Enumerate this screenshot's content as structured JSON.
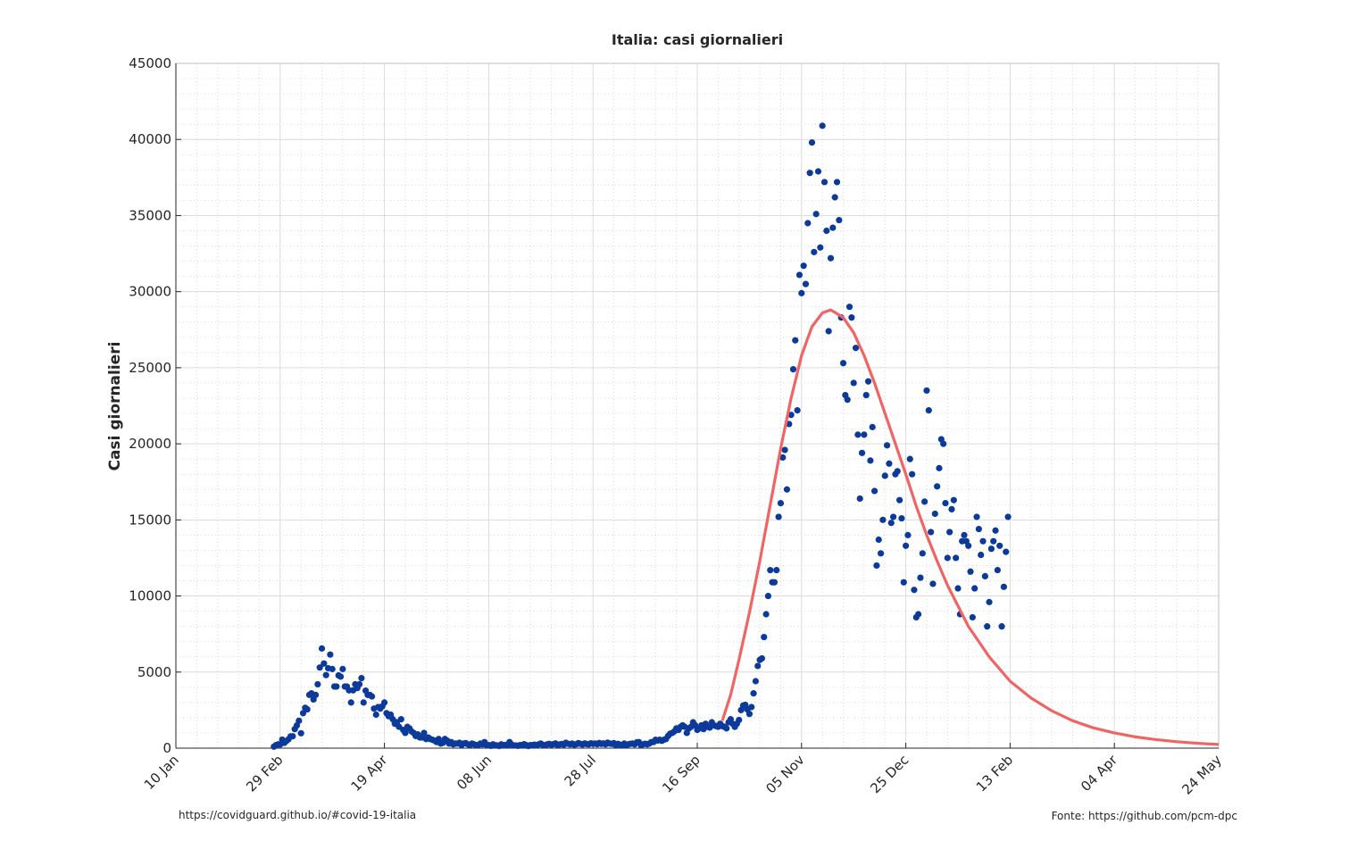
{
  "chart_data": {
    "type": "scatter",
    "title": "Italia: casi giornalieri",
    "ylabel": "Casi giornalieri",
    "footnote_left": "https://covidguard.github.io/#covid-19-italia",
    "footnote_right": "Fonte: https://github.com/pcm-dpc",
    "xlim": [
      0,
      500
    ],
    "xticks": [
      {
        "value": 0,
        "label": "10 Jan"
      },
      {
        "value": 50,
        "label": "29 Feb"
      },
      {
        "value": 100,
        "label": "19 Apr"
      },
      {
        "value": 150,
        "label": "08 Jun"
      },
      {
        "value": 200,
        "label": "28 Jul"
      },
      {
        "value": 250,
        "label": "16 Sep"
      },
      {
        "value": 300,
        "label": "05 Nov"
      },
      {
        "value": 350,
        "label": "25 Dec"
      },
      {
        "value": 400,
        "label": "13 Feb"
      },
      {
        "value": 450,
        "label": "04 Apr"
      },
      {
        "value": 500,
        "label": "24 May"
      }
    ],
    "ylim": [
      0,
      45000
    ],
    "yticks": [
      0,
      5000,
      10000,
      15000,
      20000,
      25000,
      30000,
      35000,
      40000,
      45000
    ],
    "grid": true,
    "minor_grid": true,
    "series": [
      {
        "type": "scatter",
        "color": "#0b3a9a",
        "x": [
          47,
          48,
          49,
          50,
          51,
          52,
          53,
          54,
          55,
          56,
          57,
          58,
          59,
          60,
          61,
          62,
          63,
          64,
          65,
          66,
          67,
          68,
          69,
          70,
          71,
          72,
          73,
          74,
          75,
          76,
          77,
          78,
          79,
          80,
          81,
          82,
          83,
          84,
          85,
          86,
          87,
          88,
          89,
          90,
          91,
          92,
          93,
          94,
          95,
          96,
          97,
          98,
          99,
          100,
          101,
          102,
          103,
          104,
          105,
          106,
          107,
          108,
          109,
          110,
          111,
          112,
          113,
          114,
          115,
          116,
          117,
          118,
          119,
          120,
          121,
          122,
          123,
          124,
          125,
          126,
          127,
          128,
          129,
          130,
          131,
          132,
          133,
          134,
          135,
          136,
          137,
          138,
          139,
          140,
          141,
          142,
          143,
          144,
          145,
          146,
          147,
          148,
          149,
          150,
          151,
          152,
          153,
          154,
          155,
          156,
          157,
          158,
          159,
          160,
          161,
          162,
          163,
          164,
          165,
          166,
          167,
          168,
          169,
          170,
          171,
          172,
          173,
          174,
          175,
          176,
          177,
          178,
          179,
          180,
          181,
          182,
          183,
          184,
          185,
          186,
          187,
          188,
          189,
          190,
          191,
          192,
          193,
          194,
          195,
          196,
          197,
          198,
          199,
          200,
          201,
          202,
          203,
          204,
          205,
          206,
          207,
          208,
          209,
          210,
          211,
          212,
          213,
          214,
          215,
          216,
          217,
          218,
          219,
          220,
          221,
          222,
          223,
          224,
          225,
          226,
          227,
          228,
          229,
          230,
          231,
          232,
          233,
          234,
          235,
          236,
          237,
          238,
          239,
          240,
          241,
          242,
          243,
          244,
          245,
          246,
          247,
          248,
          249,
          250,
          251,
          252,
          253,
          254,
          255,
          256,
          257,
          258,
          259,
          260,
          261,
          262,
          263,
          264,
          265,
          266,
          267,
          268,
          269,
          270,
          271,
          272,
          273,
          274,
          275,
          276,
          277,
          278,
          279,
          280,
          281,
          282,
          283,
          284,
          285,
          286,
          287,
          288,
          289,
          290,
          291,
          292,
          293,
          294,
          295,
          296,
          297,
          298,
          299,
          300,
          301,
          302,
          303,
          304,
          305,
          306,
          307,
          308,
          309,
          310,
          311,
          312,
          313,
          314,
          315,
          316,
          317,
          318,
          319,
          320,
          321,
          322,
          323,
          324,
          325,
          326,
          327,
          328,
          329,
          330,
          331,
          332,
          333,
          334,
          335,
          336,
          337,
          338,
          339,
          340,
          341,
          342,
          343,
          344,
          345,
          346,
          347,
          348,
          349,
          350,
          351,
          352,
          353,
          354,
          355,
          356,
          357,
          358,
          359,
          360,
          361,
          362,
          363,
          364,
          365,
          366,
          367,
          368,
          369,
          370,
          371,
          372,
          373,
          374,
          375,
          376,
          377,
          378,
          379,
          380,
          381,
          382,
          383,
          384,
          385,
          386,
          387,
          388,
          389,
          390,
          391,
          392,
          393,
          394,
          395,
          396,
          397,
          398,
          399
        ],
        "values": [
          100,
          200,
          250,
          240,
          560,
          350,
          470,
          580,
          770,
          780,
          1250,
          1490,
          1800,
          980,
          2300,
          2650,
          2550,
          3500,
          3600,
          3200,
          3500,
          4200,
          5300,
          6550,
          5560,
          4800,
          5250,
          6150,
          5200,
          4050,
          4050,
          4780,
          4700,
          5200,
          4050,
          4050,
          3800,
          3000,
          3800,
          4200,
          3950,
          4200,
          4600,
          3000,
          3780,
          3500,
          3500,
          3400,
          2600,
          2200,
          2700,
          2600,
          2750,
          3000,
          2300,
          2100,
          2200,
          1900,
          1600,
          1700,
          1400,
          1900,
          1200,
          1000,
          1400,
          1300,
          1100,
          1000,
          800,
          900,
          700,
          700,
          1000,
          600,
          700,
          600,
          550,
          500,
          400,
          600,
          300,
          350,
          600,
          500,
          300,
          400,
          250,
          300,
          300,
          350,
          200,
          300,
          330,
          250,
          200,
          300,
          250,
          200,
          200,
          300,
          250,
          400,
          200,
          200,
          150,
          250,
          200,
          180,
          140,
          250,
          190,
          210,
          200,
          400,
          230,
          180,
          180,
          150,
          200,
          210,
          260,
          200,
          140,
          200,
          200,
          230,
          180,
          250,
          300,
          210,
          190,
          240,
          280,
          220,
          260,
          310,
          200,
          240,
          270,
          230,
          350,
          290,
          250,
          300,
          220,
          260,
          330,
          280,
          240,
          310,
          270,
          250,
          320,
          290,
          300,
          260,
          340,
          280,
          310,
          250,
          360,
          300,
          280,
          330,
          170,
          280,
          230,
          190,
          300,
          200,
          250,
          290,
          300,
          250,
          380,
          400,
          200,
          250,
          290,
          250,
          300,
          400,
          400,
          550,
          500,
          550,
          480,
          550,
          600,
          800,
          950,
          1000,
          1100,
          1300,
          1200,
          1400,
          1500,
          1400,
          1000,
          1300,
          1400,
          1700,
          1500,
          1200,
          1300,
          1500,
          1250,
          1600,
          1400,
          1350,
          1700,
          1500,
          1450,
          1400,
          1600,
          1450,
          1400,
          1300,
          1700,
          1900,
          1600,
          1400,
          1600,
          1850,
          2500,
          2800,
          2850,
          2550,
          2250,
          2700,
          3600,
          4400,
          5400,
          5800,
          5900,
          7300,
          8800,
          10000,
          11700,
          10900,
          10900,
          11700,
          15200,
          16100,
          19100,
          19600,
          17000,
          21300,
          21900,
          24900,
          26800,
          22200,
          31100,
          29900,
          31700,
          30500,
          34500,
          37800,
          39800,
          32600,
          35100,
          37900,
          32900,
          40900,
          37200,
          34000,
          27400,
          32200,
          34200,
          36200,
          37200,
          34700,
          28300,
          25300,
          23200,
          22900,
          29000,
          28300,
          24000,
          26300,
          20600,
          16400,
          19400,
          20600,
          23200,
          24100,
          18900,
          21100,
          16900,
          12000,
          13700,
          12800,
          15000,
          17900,
          19900,
          18700,
          14800,
          15200,
          18000,
          18200,
          16300,
          15100,
          10900,
          13300,
          14000,
          19000,
          18000,
          10400,
          8600,
          8800,
          11200,
          12800,
          16200,
          23500,
          22200,
          14200,
          10800,
          15400,
          17200,
          18400,
          20300,
          20000,
          16100,
          12500,
          14200,
          15700,
          16300,
          12500,
          10500,
          8800,
          13600,
          14000,
          13600,
          13300,
          11600,
          8600,
          10500,
          15200,
          14400,
          12700,
          13600,
          11300,
          8000,
          9600,
          13100,
          13600,
          14300,
          11700,
          13300,
          8000,
          10600,
          12900,
          15200
        ]
      },
      {
        "type": "line",
        "color": "#f06464",
        "x": [
          262,
          266,
          270,
          275,
          280,
          285,
          290,
          295,
          300,
          305,
          310,
          314,
          320,
          325,
          330,
          335,
          340,
          345,
          350,
          355,
          360,
          365,
          370,
          380,
          390,
          400,
          410,
          420,
          430,
          440,
          450,
          460,
          470,
          480,
          490,
          500
        ],
        "values": [
          1800,
          3500,
          5800,
          8900,
          12300,
          16000,
          19700,
          23000,
          25800,
          27700,
          28600,
          28800,
          28300,
          27300,
          25800,
          24000,
          22000,
          20000,
          18000,
          15900,
          14000,
          12300,
          10700,
          8000,
          6000,
          4400,
          3300,
          2450,
          1800,
          1330,
          1000,
          740,
          560,
          420,
          320,
          240
        ]
      }
    ]
  }
}
